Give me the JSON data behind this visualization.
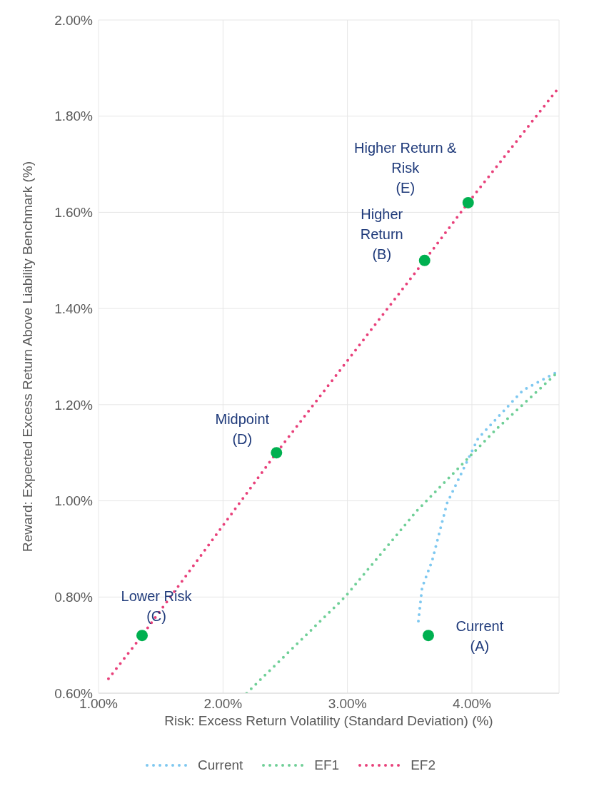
{
  "chart_data": {
    "type": "line",
    "xlabel": "Risk: Excess Return Volatility (Standard Deviation) (%)",
    "ylabel": "Reward: Expected Excess Return Above Liability Benchmark (%)",
    "xlim": [
      1,
      4.7
    ],
    "xticks": [
      {
        "value": 1,
        "label": "1.00%"
      },
      {
        "value": 2,
        "label": "2.00%"
      },
      {
        "value": 3,
        "label": "3.00%"
      },
      {
        "value": 4,
        "label": "4.00%"
      }
    ],
    "ylim": [
      0.6,
      2.0
    ],
    "yticks": [
      {
        "value": 0.6,
        "label": "0.60%"
      },
      {
        "value": 0.8,
        "label": "0.80%"
      },
      {
        "value": 1.0,
        "label": "1.00%"
      },
      {
        "value": 1.2,
        "label": "1.20%"
      },
      {
        "value": 1.4,
        "label": "1.40%"
      },
      {
        "value": 1.6,
        "label": "1.60%"
      },
      {
        "value": 1.8,
        "label": "1.80%"
      },
      {
        "value": 2.0,
        "label": "2.00%"
      }
    ],
    "grid": true,
    "legend": "bottom",
    "line_style": "dotted",
    "series": [
      {
        "name": "Current",
        "marker": "none",
        "color": "#7ec8f0",
        "x": [
          3.57,
          3.6,
          3.68,
          3.8,
          4.05,
          4.41,
          4.7
        ],
        "values": [
          0.75,
          0.82,
          0.875,
          0.995,
          1.13,
          1.23,
          1.27
        ]
      },
      {
        "name": "EF1",
        "marker": "none",
        "color": "#6fcf97",
        "x": [
          2.19,
          2.98,
          3.56,
          4.2,
          4.7
        ],
        "values": [
          0.6,
          0.8,
          0.98,
          1.15,
          1.27
        ]
      },
      {
        "name": "EF2",
        "marker": "none",
        "color": "#e8407a",
        "x": [
          1.08,
          1.35,
          2.43,
          3.62,
          3.97,
          4.7
        ],
        "values": [
          0.63,
          0.72,
          1.1,
          1.5,
          1.62,
          1.86
        ]
      },
      {
        "type": "scatter",
        "marker": "circle",
        "color": "#00b050",
        "x": [
          1.35,
          2.43,
          3.62,
          3.97,
          3.65
        ],
        "values": [
          0.72,
          1.1,
          1.5,
          1.62,
          0.72
        ]
      }
    ],
    "annotations": [
      {
        "text": "Lower Risk\n(C)",
        "x": 1.35,
        "y": 0.72
      },
      {
        "text": "Midpoint\n(D)",
        "x": 2.43,
        "y": 1.1
      },
      {
        "text": "Higher\nReturn\n(B)",
        "x": 3.62,
        "y": 1.5
      },
      {
        "text": "Higher Return &\nRisk\n(E)",
        "x": 3.97,
        "y": 1.62
      },
      {
        "text": "Current\n(A)",
        "x": 3.65,
        "y": 0.72
      }
    ]
  }
}
